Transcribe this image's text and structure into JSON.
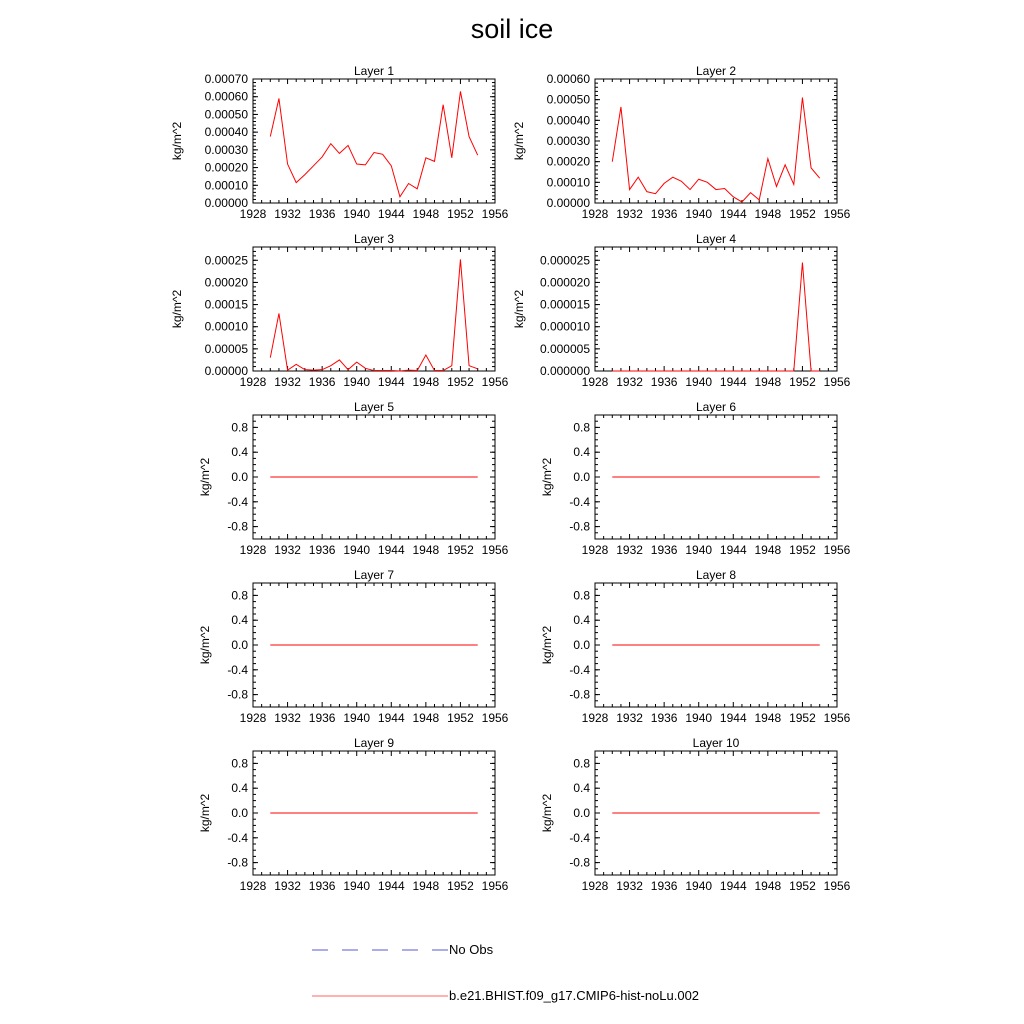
{
  "title": "soil ice",
  "colors": {
    "model_line": "#ff0000",
    "obs_line": "#5a5ad2",
    "axis": "#000000"
  },
  "legend": {
    "obs_label": "No Obs",
    "model_label": "b.e21.BHIST.f09_g17.CMIP6-hist-noLu.002"
  },
  "chart_data": [
    {
      "type": "line",
      "title": "Layer 1",
      "ylabel": "kg/m^2",
      "xlim": [
        1928,
        1956
      ],
      "xticks": [
        "1928",
        "1932",
        "1936",
        "1940",
        "1944",
        "1948",
        "1952",
        "1956"
      ],
      "ylim": [
        0,
        0.0007
      ],
      "yticks": [
        "0.00000",
        "0.00010",
        "0.00020",
        "0.00030",
        "0.00040",
        "0.00050",
        "0.00060",
        "0.00070"
      ],
      "series": [
        {
          "x": [
            1930,
            1931,
            1932,
            1933,
            1934,
            1935,
            1936,
            1937,
            1938,
            1939,
            1940,
            1941,
            1942,
            1943,
            1944,
            1945,
            1946,
            1947,
            1948,
            1949,
            1950,
            1951,
            1952,
            1953,
            1954
          ],
          "values": [
            0.000375,
            0.00059,
            0.00022,
            0.000115,
            0.00016,
            0.00021,
            0.00026,
            0.000335,
            0.00028,
            0.000325,
            0.00022,
            0.000215,
            0.000285,
            0.000275,
            0.00021,
            3.5e-05,
            0.00011,
            8e-05,
            0.000255,
            0.000235,
            0.000555,
            0.000255,
            0.00063,
            0.000375,
            0.00027
          ]
        }
      ]
    },
    {
      "type": "line",
      "title": "Layer 2",
      "ylabel": "kg/m^2",
      "xlim": [
        1928,
        1956
      ],
      "xticks": [
        "1928",
        "1932",
        "1936",
        "1940",
        "1944",
        "1948",
        "1952",
        "1956"
      ],
      "ylim": [
        0,
        0.0006
      ],
      "yticks": [
        "0.00000",
        "0.00010",
        "0.00020",
        "0.00030",
        "0.00040",
        "0.00050",
        "0.00060"
      ],
      "series": [
        {
          "x": [
            1930,
            1931,
            1932,
            1933,
            1934,
            1935,
            1936,
            1937,
            1938,
            1939,
            1940,
            1941,
            1942,
            1943,
            1944,
            1945,
            1946,
            1947,
            1948,
            1949,
            1950,
            1951,
            1952,
            1953,
            1954
          ],
          "values": [
            0.0002,
            0.000465,
            6.5e-05,
            0.000125,
            5.5e-05,
            4.5e-05,
            9.5e-05,
            0.000125,
            0.000105,
            6.5e-05,
            0.000115,
            0.0001,
            6.5e-05,
            7e-05,
            3e-05,
            5e-06,
            5e-05,
            1.5e-05,
            0.000215,
            8e-05,
            0.000185,
            9e-05,
            0.00051,
            0.00017,
            0.00012
          ]
        }
      ]
    },
    {
      "type": "line",
      "title": "Layer 3",
      "ylabel": "kg/m^2",
      "xlim": [
        1928,
        1956
      ],
      "xticks": [
        "1928",
        "1932",
        "1936",
        "1940",
        "1944",
        "1948",
        "1952",
        "1956"
      ],
      "ylim": [
        0,
        0.00028
      ],
      "yticks": [
        "0.00000",
        "0.00005",
        "0.00010",
        "0.00015",
        "0.00020",
        "0.00025"
      ],
      "series": [
        {
          "x": [
            1930,
            1931,
            1932,
            1933,
            1934,
            1935,
            1936,
            1937,
            1938,
            1939,
            1940,
            1941,
            1942,
            1943,
            1944,
            1945,
            1946,
            1947,
            1948,
            1949,
            1950,
            1951,
            1952,
            1953,
            1954
          ],
          "values": [
            3e-05,
            0.00013,
            2e-06,
            1.5e-05,
            3e-06,
            2e-06,
            3e-06,
            1.2e-05,
            2.5e-05,
            3e-06,
            2e-05,
            6e-06,
            1e-06,
            1e-06,
            1e-06,
            0.0,
            2e-06,
            1e-06,
            3.6e-05,
            1e-06,
            1e-06,
            1.2e-05,
            0.000252,
            1.2e-05,
            5e-06
          ]
        }
      ]
    },
    {
      "type": "line",
      "title": "Layer 4",
      "ylabel": "kg/m^2",
      "xlim": [
        1928,
        1956
      ],
      "xticks": [
        "1928",
        "1932",
        "1936",
        "1940",
        "1944",
        "1948",
        "1952",
        "1956"
      ],
      "ylim": [
        0,
        2.8e-05
      ],
      "yticks": [
        "0.000000",
        "0.000005",
        "0.000010",
        "0.000015",
        "0.000020",
        "0.000025"
      ],
      "series": [
        {
          "x": [
            1930,
            1931,
            1932,
            1933,
            1934,
            1935,
            1936,
            1937,
            1938,
            1939,
            1940,
            1941,
            1942,
            1943,
            1944,
            1945,
            1946,
            1947,
            1948,
            1949,
            1950,
            1951,
            1952,
            1953,
            1954
          ],
          "values": [
            0,
            0,
            0,
            0,
            0,
            0,
            0,
            0,
            0,
            0,
            0,
            0,
            0,
            0,
            0,
            0,
            0,
            0,
            0,
            0,
            0,
            0,
            2.45e-05,
            0,
            0
          ]
        }
      ]
    },
    {
      "type": "line",
      "title": "Layer 5",
      "ylabel": "kg/m^2",
      "xlim": [
        1928,
        1956
      ],
      "xticks": [
        "1928",
        "1932",
        "1936",
        "1940",
        "1944",
        "1948",
        "1952",
        "1956"
      ],
      "ylim": [
        -1,
        1
      ],
      "yticks": [
        "-0.8",
        "-0.4",
        "0.0",
        "0.4",
        "0.8"
      ],
      "yminor": 0.1,
      "series": [
        {
          "x": [
            1930,
            1954
          ],
          "values": [
            0,
            0
          ]
        }
      ]
    },
    {
      "type": "line",
      "title": "Layer 6",
      "ylabel": "kg/m^2",
      "xlim": [
        1928,
        1956
      ],
      "xticks": [
        "1928",
        "1932",
        "1936",
        "1940",
        "1944",
        "1948",
        "1952",
        "1956"
      ],
      "ylim": [
        -1,
        1
      ],
      "yticks": [
        "-0.8",
        "-0.4",
        "0.0",
        "0.4",
        "0.8"
      ],
      "yminor": 0.1,
      "series": [
        {
          "x": [
            1930,
            1954
          ],
          "values": [
            0,
            0
          ]
        }
      ]
    },
    {
      "type": "line",
      "title": "Layer 7",
      "ylabel": "kg/m^2",
      "xlim": [
        1928,
        1956
      ],
      "xticks": [
        "1928",
        "1932",
        "1936",
        "1940",
        "1944",
        "1948",
        "1952",
        "1956"
      ],
      "ylim": [
        -1,
        1
      ],
      "yticks": [
        "-0.8",
        "-0.4",
        "0.0",
        "0.4",
        "0.8"
      ],
      "yminor": 0.1,
      "series": [
        {
          "x": [
            1930,
            1954
          ],
          "values": [
            0,
            0
          ]
        }
      ]
    },
    {
      "type": "line",
      "title": "Layer 8",
      "ylabel": "kg/m^2",
      "xlim": [
        1928,
        1956
      ],
      "xticks": [
        "1928",
        "1932",
        "1936",
        "1940",
        "1944",
        "1948",
        "1952",
        "1956"
      ],
      "ylim": [
        -1,
        1
      ],
      "yticks": [
        "-0.8",
        "-0.4",
        "0.0",
        "0.4",
        "0.8"
      ],
      "yminor": 0.1,
      "series": [
        {
          "x": [
            1930,
            1954
          ],
          "values": [
            0,
            0
          ]
        }
      ]
    },
    {
      "type": "line",
      "title": "Layer 9",
      "ylabel": "kg/m^2",
      "xlim": [
        1928,
        1956
      ],
      "xticks": [
        "1928",
        "1932",
        "1936",
        "1940",
        "1944",
        "1948",
        "1952",
        "1956"
      ],
      "ylim": [
        -1,
        1
      ],
      "yticks": [
        "-0.8",
        "-0.4",
        "0.0",
        "0.4",
        "0.8"
      ],
      "yminor": 0.1,
      "series": [
        {
          "x": [
            1930,
            1954
          ],
          "values": [
            0,
            0
          ]
        }
      ]
    },
    {
      "type": "line",
      "title": "Layer 10",
      "ylabel": "kg/m^2",
      "xlim": [
        1928,
        1956
      ],
      "xticks": [
        "1928",
        "1932",
        "1936",
        "1940",
        "1944",
        "1948",
        "1952",
        "1956"
      ],
      "ylim": [
        -1,
        1
      ],
      "yticks": [
        "-0.8",
        "-0.4",
        "0.0",
        "0.4",
        "0.8"
      ],
      "yminor": 0.1,
      "series": [
        {
          "x": [
            1930,
            1954
          ],
          "values": [
            0,
            0
          ]
        }
      ]
    }
  ]
}
